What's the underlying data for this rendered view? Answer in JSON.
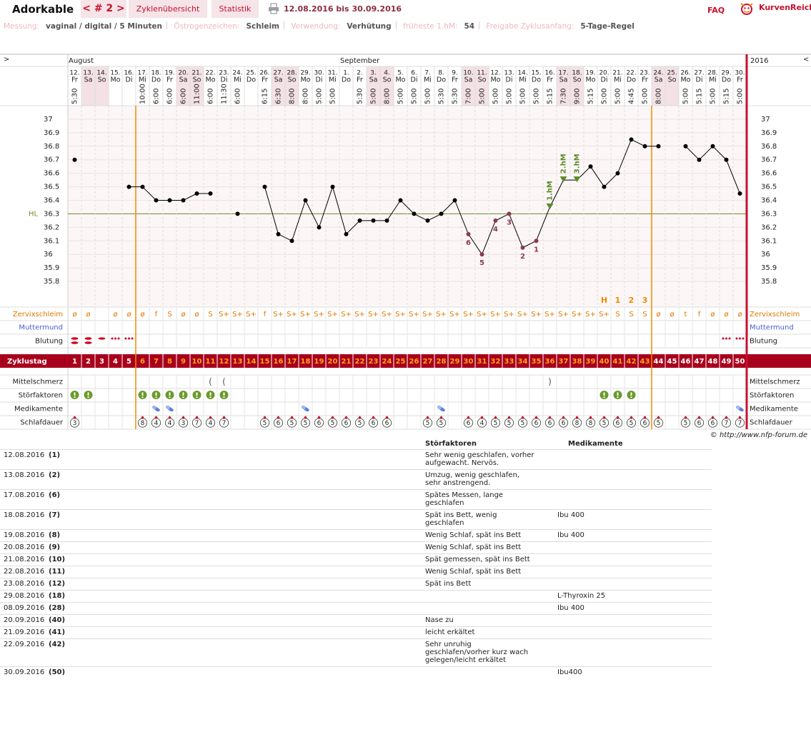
{
  "header": {
    "user": "Adorkable",
    "cycle": "< # 2 >",
    "tabs": [
      "Zyklenübersicht",
      "Statistik"
    ],
    "date_range": "12.08.2016 bis 30.09.2016",
    "faq": "FAQ",
    "brand": "KurvenReich"
  },
  "info": [
    {
      "label": "Messung:",
      "value": "vaginal / digital / 5 Minuten"
    },
    {
      "label": "Östrogenzeichen:",
      "value": "Schleim"
    },
    {
      "label": "Verwendung:",
      "value": "Verhütung"
    },
    {
      "label": "früheste 1.hM:",
      "value": "54"
    },
    {
      "label": "Freigabe Zyklusanfang:",
      "value": "5-Tage-Regel"
    }
  ],
  "chart_data": {
    "type": "line",
    "nav_prev": ">",
    "nav_next": "<",
    "year": "2016",
    "month_labels": [
      "August",
      null,
      null,
      null,
      null,
      null,
      null,
      null,
      null,
      null,
      null,
      null,
      null,
      null,
      null,
      null,
      null,
      null,
      null,
      null,
      "September",
      null,
      null,
      null,
      null,
      null,
      null,
      null,
      null,
      null,
      null,
      null,
      null,
      null,
      null,
      null,
      null,
      null,
      null,
      null,
      null,
      null,
      null,
      null,
      null,
      null,
      null,
      null,
      null,
      null
    ],
    "categories": [
      "12.",
      "13.",
      "14.",
      "15.",
      "16.",
      "17.",
      "18.",
      "19.",
      "20.",
      "21.",
      "22.",
      "23.",
      "24.",
      "25.",
      "26.",
      "27.",
      "28.",
      "29.",
      "30.",
      "31.",
      "1.",
      "2.",
      "3.",
      "4.",
      "5.",
      "6.",
      "7.",
      "8.",
      "9.",
      "10.",
      "11.",
      "12.",
      "13.",
      "14.",
      "15.",
      "16.",
      "17.",
      "18.",
      "19.",
      "20.",
      "21.",
      "22.",
      "23.",
      "24.",
      "25.",
      "26.",
      "27.",
      "28.",
      "29.",
      "30."
    ],
    "weekdays": [
      "Fr",
      "Sa",
      "So",
      "Mo",
      "Di",
      "Mi",
      "Do",
      "Fr",
      "Sa",
      "So",
      "Mo",
      "Di",
      "Mi",
      "Do",
      "Fr",
      "Sa",
      "So",
      "Mo",
      "Di",
      "Mi",
      "Do",
      "Fr",
      "Sa",
      "So",
      "Mo",
      "Di",
      "Mi",
      "Do",
      "Fr",
      "Sa",
      "So",
      "Mo",
      "Di",
      "Mi",
      "Do",
      "Fr",
      "Sa",
      "So",
      "Mo",
      "Di",
      "Mi",
      "Do",
      "Fr",
      "Sa",
      "So",
      "Mo",
      "Di",
      "Mi",
      "Do",
      "Fr"
    ],
    "times": [
      "5:30",
      null,
      null,
      null,
      null,
      "10:00",
      "6:00",
      "6:00",
      "6:00",
      "11:00",
      "6:00",
      "11:30",
      "6:00",
      null,
      "6:15",
      "6:30",
      "8:00",
      "8:00",
      "5:00",
      "5:00",
      null,
      "5:30",
      "5:00",
      "8:00",
      "5:00",
      "5:00",
      "5:00",
      "5:30",
      "5:30",
      "7:00",
      "5:00",
      "5:00",
      "5:00",
      "5:00",
      "5:00",
      "5:15",
      "7:30",
      "9:00",
      "5:15",
      "5:00",
      "5:00",
      "4:45",
      "5:00",
      "8:00",
      null,
      "5:00",
      "5:15",
      "5:00",
      "5:15",
      "5:00"
    ],
    "values": [
      36.7,
      null,
      null,
      null,
      36.5,
      36.5,
      36.4,
      36.4,
      36.4,
      36.45,
      36.45,
      null,
      36.3,
      null,
      36.5,
      36.15,
      36.1,
      36.4,
      36.2,
      36.5,
      36.15,
      36.25,
      36.25,
      36.25,
      36.4,
      36.3,
      36.25,
      36.3,
      36.4,
      36.15,
      36.0,
      36.25,
      36.3,
      36.05,
      36.1,
      36.35,
      36.55,
      36.55,
      36.65,
      36.5,
      36.6,
      36.85,
      36.8,
      36.8,
      null,
      36.8,
      36.7,
      36.8,
      36.7,
      36.45
    ],
    "color": "#000000",
    "ylim": [
      35.7,
      37.1
    ],
    "yticks": [
      35.8,
      35.9,
      36,
      36.1,
      36.2,
      36.3,
      36.4,
      36.5,
      36.6,
      36.7,
      36.8,
      36.9,
      37
    ],
    "hl": {
      "label": "HL",
      "value": 36.3
    },
    "count_labels": [
      null,
      null,
      null,
      null,
      null,
      null,
      null,
      null,
      null,
      null,
      null,
      null,
      null,
      null,
      null,
      null,
      null,
      null,
      null,
      null,
      null,
      null,
      null,
      null,
      null,
      null,
      null,
      null,
      null,
      6,
      5,
      4,
      3,
      2,
      1,
      null,
      null,
      null,
      null,
      null,
      null,
      null,
      null,
      null,
      null,
      null,
      null,
      null,
      null,
      null
    ],
    "hm_labels": [
      null,
      null,
      null,
      null,
      null,
      null,
      null,
      null,
      null,
      null,
      null,
      null,
      null,
      null,
      null,
      null,
      null,
      null,
      null,
      null,
      null,
      null,
      null,
      null,
      null,
      null,
      null,
      null,
      null,
      null,
      null,
      null,
      null,
      null,
      null,
      "1.hM",
      "2.hM",
      "3.hM",
      null,
      null,
      null,
      null,
      null,
      null,
      null,
      null,
      null,
      null,
      null,
      null
    ],
    "phase_labels": [
      null,
      null,
      null,
      null,
      null,
      null,
      null,
      null,
      null,
      null,
      null,
      null,
      null,
      null,
      null,
      null,
      null,
      null,
      null,
      null,
      null,
      null,
      null,
      null,
      null,
      null,
      null,
      null,
      null,
      null,
      null,
      null,
      null,
      null,
      null,
      null,
      null,
      null,
      null,
      "H",
      "1",
      "2",
      "3",
      null,
      null,
      null,
      null,
      null,
      null,
      null
    ],
    "mucus": [
      "ø",
      "ø",
      null,
      "ø",
      "ø",
      "ø",
      "f",
      "S",
      "ø",
      "ø",
      "S",
      "S+",
      "S+",
      "S+",
      "f",
      "S+",
      "S+",
      "S+",
      "S+",
      "S+",
      "S+",
      "S+",
      "S+",
      "S+",
      "S+",
      "S+",
      "S+",
      "S+",
      "S+",
      "S+",
      "S+",
      "S+",
      "S+",
      "S+",
      "S+",
      "S+",
      "S+",
      "S+",
      "S+",
      "S+",
      "S",
      "S",
      "S",
      "ø",
      "ø",
      "t",
      "f",
      "ø",
      "ø",
      "ø"
    ],
    "mittelschmerz": [
      null,
      null,
      null,
      null,
      null,
      null,
      null,
      null,
      null,
      null,
      "(",
      "(",
      null,
      null,
      null,
      null,
      null,
      null,
      null,
      null,
      null,
      null,
      null,
      null,
      null,
      null,
      null,
      null,
      null,
      null,
      null,
      null,
      null,
      null,
      null,
      ")",
      null,
      null,
      null,
      null,
      null,
      null,
      null,
      null,
      null,
      null,
      null,
      null,
      null,
      null
    ],
    "cycle_days": [
      1,
      2,
      3,
      4,
      5,
      6,
      7,
      8,
      9,
      10,
      11,
      12,
      13,
      14,
      15,
      16,
      17,
      18,
      19,
      20,
      21,
      22,
      23,
      24,
      25,
      26,
      27,
      28,
      29,
      30,
      31,
      32,
      33,
      34,
      35,
      36,
      37,
      38,
      39,
      40,
      41,
      42,
      43,
      44,
      45,
      46,
      47,
      48,
      49,
      50
    ],
    "sleep": [
      3,
      null,
      null,
      null,
      null,
      8,
      4,
      4,
      3,
      7,
      4,
      7,
      null,
      null,
      5,
      6,
      5,
      5,
      6,
      5,
      6,
      5,
      6,
      6,
      null,
      null,
      5,
      5,
      null,
      6,
      4,
      5,
      5,
      5,
      6,
      6,
      6,
      8,
      8,
      5,
      6,
      5,
      6,
      5,
      null,
      5,
      6,
      6,
      7,
      7
    ],
    "row_labels": {
      "mucus": "Zervixschleim",
      "cervix": "Muttermund",
      "bleeding": "Blutung",
      "cycle_day": "Zyklustag",
      "mittelschmerz": "Mittelschmerz",
      "disturbances": "Störfaktoren",
      "medication": "Medikamente",
      "sleep": "Schlafdauer"
    }
  },
  "footer": {
    "copyright": "© http://www.nfp-forum.de"
  },
  "table": {
    "columns": [
      "Störfaktoren",
      "Medikamente"
    ],
    "rows": [
      [
        "12.08.2016",
        "(1)",
        "Sehr wenig geschlafen, vorher aufgewacht. Nervös.",
        null
      ],
      [
        "13.08.2016",
        "(2)",
        "Umzug, wenig geschlafen, sehr anstrengend.",
        null
      ],
      [
        "17.08.2016",
        "(6)",
        "Spätes Messen, lange geschlafen",
        null
      ],
      [
        "18.08.2016",
        "(7)",
        "Spät ins Bett, wenig geschlafen",
        "Ibu 400"
      ],
      [
        "19.08.2016",
        "(8)",
        "Wenig Schlaf, spät ins Bett",
        "Ibu 400"
      ],
      [
        "20.08.2016",
        "(9)",
        "Wenig Schlaf, spät ins Bett",
        null
      ],
      [
        "21.08.2016",
        "(10)",
        "Spät gemessen, spät ins Bett",
        null
      ],
      [
        "22.08.2016",
        "(11)",
        "Wenig Schlaf, spät ins Bett",
        null
      ],
      [
        "23.08.2016",
        "(12)",
        "Spät ins Bett",
        null
      ],
      [
        "29.08.2016",
        "(18)",
        null,
        "L-Thyroxin 25"
      ],
      [
        "08.09.2016",
        "(28)",
        null,
        "Ibu 400"
      ],
      [
        "20.09.2016",
        "(40)",
        "Nase zu",
        null
      ],
      [
        "21.09.2016",
        "(41)",
        "leicht erkältet",
        null
      ],
      [
        "22.09.2016",
        "(42)",
        "Sehr unruhig geschlafen/vorher kurz wach gelegen/leicht erkältet",
        null
      ],
      [
        "30.09.2016",
        "(50)",
        null,
        "Ibu400"
      ]
    ]
  }
}
